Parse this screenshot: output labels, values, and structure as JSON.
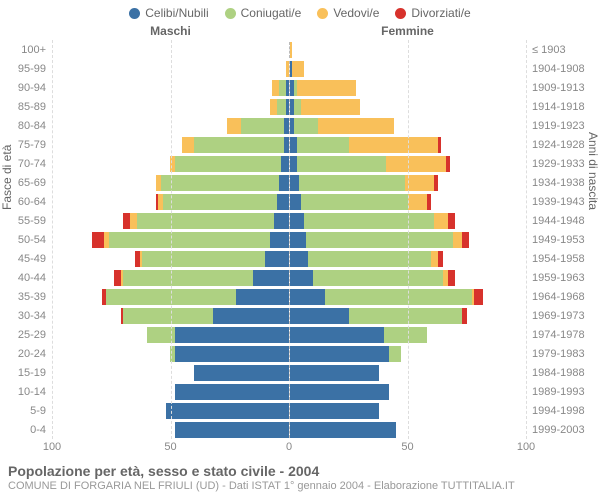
{
  "legend": [
    {
      "label": "Celibi/Nubili",
      "color": "#3b71a5"
    },
    {
      "label": "Coniugati/e",
      "color": "#aed182"
    },
    {
      "label": "Vedovi/e",
      "color": "#f9c05a"
    },
    {
      "label": "Divorziati/e",
      "color": "#d7322c"
    }
  ],
  "headers": {
    "male": "Maschi",
    "female": "Femmine",
    "left_axis": "Fasce di età",
    "right_axis": "Anni di nascita"
  },
  "max_value": 100,
  "x_ticks": [
    100,
    50,
    0,
    50,
    100
  ],
  "grid_step": 50,
  "rows": [
    {
      "age": "100+",
      "birth": "≤ 1903",
      "m": [
        0,
        0,
        0,
        0
      ],
      "f": [
        0,
        0,
        1,
        0
      ]
    },
    {
      "age": "95-99",
      "birth": "1904-1908",
      "m": [
        0,
        0,
        1,
        0
      ],
      "f": [
        1,
        0,
        5,
        0
      ]
    },
    {
      "age": "90-94",
      "birth": "1909-1913",
      "m": [
        1,
        3,
        3,
        0
      ],
      "f": [
        2,
        1,
        25,
        0
      ]
    },
    {
      "age": "85-89",
      "birth": "1914-1918",
      "m": [
        1,
        4,
        3,
        0
      ],
      "f": [
        2,
        3,
        25,
        0
      ]
    },
    {
      "age": "80-84",
      "birth": "1919-1923",
      "m": [
        2,
        18,
        6,
        0
      ],
      "f": [
        2,
        10,
        32,
        0
      ]
    },
    {
      "age": "75-79",
      "birth": "1924-1928",
      "m": [
        2,
        38,
        5,
        0
      ],
      "f": [
        3,
        22,
        38,
        1
      ]
    },
    {
      "age": "70-74",
      "birth": "1929-1933",
      "m": [
        3,
        45,
        2,
        0
      ],
      "f": [
        3,
        38,
        25,
        2
      ]
    },
    {
      "age": "65-69",
      "birth": "1934-1938",
      "m": [
        4,
        50,
        2,
        0
      ],
      "f": [
        4,
        45,
        12,
        2
      ]
    },
    {
      "age": "60-64",
      "birth": "1939-1943",
      "m": [
        5,
        48,
        2,
        1
      ],
      "f": [
        5,
        45,
        8,
        2
      ]
    },
    {
      "age": "55-59",
      "birth": "1944-1948",
      "m": [
        6,
        58,
        3,
        3
      ],
      "f": [
        6,
        55,
        6,
        3
      ]
    },
    {
      "age": "50-54",
      "birth": "1949-1953",
      "m": [
        8,
        68,
        2,
        5
      ],
      "f": [
        7,
        62,
        4,
        3
      ]
    },
    {
      "age": "45-49",
      "birth": "1954-1958",
      "m": [
        10,
        52,
        1,
        2
      ],
      "f": [
        8,
        52,
        3,
        2
      ]
    },
    {
      "age": "40-44",
      "birth": "1959-1963",
      "m": [
        15,
        55,
        1,
        3
      ],
      "f": [
        10,
        55,
        2,
        3
      ]
    },
    {
      "age": "35-39",
      "birth": "1964-1968",
      "m": [
        22,
        55,
        0,
        2
      ],
      "f": [
        15,
        62,
        1,
        4
      ]
    },
    {
      "age": "30-34",
      "birth": "1969-1973",
      "m": [
        32,
        38,
        0,
        1
      ],
      "f": [
        25,
        48,
        0,
        2
      ]
    },
    {
      "age": "25-29",
      "birth": "1974-1978",
      "m": [
        48,
        12,
        0,
        0
      ],
      "f": [
        40,
        18,
        0,
        0
      ]
    },
    {
      "age": "20-24",
      "birth": "1979-1983",
      "m": [
        48,
        2,
        0,
        0
      ],
      "f": [
        42,
        5,
        0,
        0
      ]
    },
    {
      "age": "15-19",
      "birth": "1984-1988",
      "m": [
        40,
        0,
        0,
        0
      ],
      "f": [
        38,
        0,
        0,
        0
      ]
    },
    {
      "age": "10-14",
      "birth": "1989-1993",
      "m": [
        48,
        0,
        0,
        0
      ],
      "f": [
        42,
        0,
        0,
        0
      ]
    },
    {
      "age": "5-9",
      "birth": "1994-1998",
      "m": [
        52,
        0,
        0,
        0
      ],
      "f": [
        38,
        0,
        0,
        0
      ]
    },
    {
      "age": "0-4",
      "birth": "1999-2003",
      "m": [
        48,
        0,
        0,
        0
      ],
      "f": [
        45,
        0,
        0,
        0
      ]
    }
  ],
  "footer": {
    "title": "Popolazione per età, sesso e stato civile - 2004",
    "subtitle": "COMUNE DI FORGARIA NEL FRIULI (UD) - Dati ISTAT 1° gennaio 2004 - Elaborazione TUTTITALIA.IT"
  }
}
